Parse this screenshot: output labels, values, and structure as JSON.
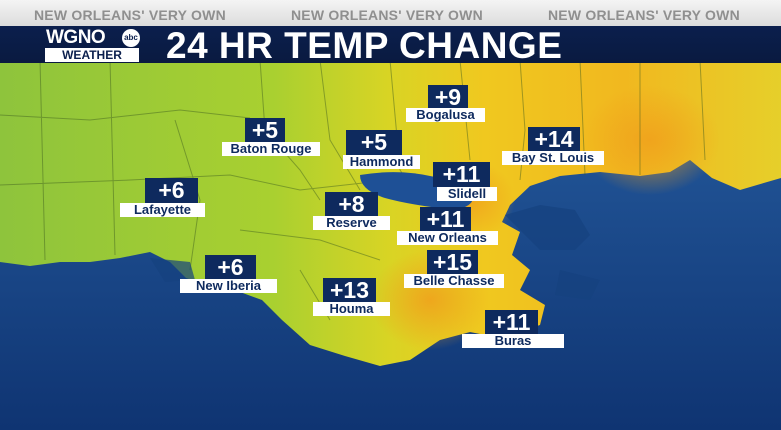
{
  "header": {
    "taglines": [
      "NEW ORLEANS' VERY OWN",
      "NEW ORLEANS' VERY OWN",
      "NEW ORLEANS' VERY OWN"
    ],
    "logo": {
      "name": "WGNO",
      "network": "abc",
      "subtitle": "WEATHER"
    },
    "title": "24 HR TEMP CHANGE"
  },
  "cities": [
    {
      "name": "Baton Rouge",
      "change": "+5"
    },
    {
      "name": "Hammond",
      "change": "+5"
    },
    {
      "name": "Bogalusa",
      "change": "+9"
    },
    {
      "name": "Bay St. Louis",
      "change": "+14"
    },
    {
      "name": "Lafayette",
      "change": "+6"
    },
    {
      "name": "Reserve",
      "change": "+8"
    },
    {
      "name": "Slidell",
      "change": "+11"
    },
    {
      "name": "New Orleans",
      "change": "+11"
    },
    {
      "name": "New Iberia",
      "change": "+6"
    },
    {
      "name": "Belle Chasse",
      "change": "+15"
    },
    {
      "name": "Houma",
      "change": "+13"
    },
    {
      "name": "Buras",
      "change": "+11"
    }
  ]
}
